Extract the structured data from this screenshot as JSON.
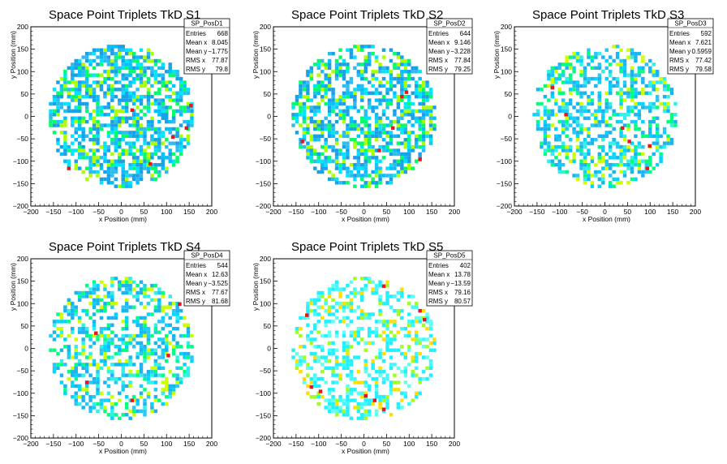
{
  "chart_data": [
    {
      "type": "heatmap",
      "title": "Space Point Triplets TkD S1",
      "xlabel": "x Position (mm)",
      "ylabel": "y Position (mm)",
      "xlim": [
        -200,
        200
      ],
      "ylim": [
        -200,
        200
      ],
      "xticks": [
        "−200",
        "−150",
        "−100",
        "−50",
        "0",
        "50",
        "100",
        "150",
        "200"
      ],
      "yticks": [
        "−200",
        "−150",
        "−100",
        "−50",
        "0",
        "50",
        "100",
        "150",
        "200"
      ],
      "stats": {
        "name": "SP_PosD1",
        "rows": [
          [
            "Entries",
            "668"
          ],
          [
            "Mean x",
            "8.045"
          ],
          [
            "Mean y",
            "−1.775"
          ],
          [
            "RMS x",
            "77.87"
          ],
          [
            "RMS y",
            "79.8"
          ]
        ]
      },
      "palette": "blue",
      "hot_cells": [
        [
          60,
          -110
        ],
        [
          150,
          20
        ],
        [
          20,
          10
        ],
        [
          -120,
          -120
        ],
        [
          110,
          -50
        ],
        [
          140,
          -30
        ]
      ]
    },
    {
      "type": "heatmap",
      "title": "Space Point Triplets TkD S2",
      "xlabel": "x Position (mm)",
      "ylabel": "y Position (mm)",
      "xlim": [
        -200,
        200
      ],
      "ylim": [
        -200,
        200
      ],
      "xticks": [
        "−200",
        "−150",
        "−100",
        "−50",
        "0",
        "50",
        "100",
        "150",
        "200"
      ],
      "yticks": [
        "−200",
        "−150",
        "−100",
        "−50",
        "0",
        "50",
        "100",
        "150",
        "200"
      ],
      "stats": {
        "name": "SP_PosD2",
        "rows": [
          [
            "Entries",
            "644"
          ],
          [
            "Mean x",
            "9.146"
          ],
          [
            "Mean y",
            "−3.228"
          ],
          [
            "RMS x",
            "77.84"
          ],
          [
            "RMS y",
            "79.25"
          ]
        ]
      },
      "palette": "blue",
      "hot_cells": [
        [
          90,
          50
        ],
        [
          60,
          -30
        ],
        [
          -140,
          -60
        ],
        [
          80,
          40
        ],
        [
          30,
          -80
        ],
        [
          120,
          -100
        ]
      ]
    },
    {
      "type": "heatmap",
      "title": "Space Point Triplets TkD S3",
      "xlabel": "x Position (mm)",
      "ylabel": "y Position (mm)",
      "xlim": [
        -200,
        200
      ],
      "ylim": [
        -200,
        200
      ],
      "xticks": [
        "−200",
        "−150",
        "−100",
        "−50",
        "0",
        "50",
        "100",
        "150",
        "200"
      ],
      "yticks": [
        "−200",
        "−150",
        "−100",
        "−50",
        "0",
        "50",
        "100",
        "150",
        "200"
      ],
      "stats": {
        "name": "SP_PosD3",
        "rows": [
          [
            "Entries",
            "592"
          ],
          [
            "Mean x",
            "7.621"
          ],
          [
            "Mean y",
            "0.5959"
          ],
          [
            "RMS x",
            "77.42"
          ],
          [
            "RMS y",
            "79.58"
          ]
        ]
      },
      "palette": "cyan",
      "hot_cells": [
        [
          35,
          -30
        ],
        [
          90,
          -120
        ],
        [
          95,
          -70
        ],
        [
          -90,
          0
        ],
        [
          50,
          -60
        ],
        [
          -120,
          60
        ]
      ]
    },
    {
      "type": "heatmap",
      "title": "Space Point Triplets TkD S4",
      "xlabel": "x Position (mm)",
      "ylabel": "y Position (mm)",
      "xlim": [
        -200,
        200
      ],
      "ylim": [
        -200,
        200
      ],
      "xticks": [
        "−200",
        "−150",
        "−100",
        "−50",
        "0",
        "50",
        "100",
        "150",
        "200"
      ],
      "yticks": [
        "−200",
        "−150",
        "−100",
        "−50",
        "0",
        "50",
        "100",
        "150",
        "200"
      ],
      "stats": {
        "name": "SP_PosD4",
        "rows": [
          [
            "Entries",
            "544"
          ],
          [
            "Mean x",
            "12.63"
          ],
          [
            "Mean y",
            "−3.525"
          ],
          [
            "RMS x",
            "77.67"
          ],
          [
            "RMS y",
            "81.68"
          ]
        ]
      },
      "palette": "cyan",
      "hot_cells": [
        [
          125,
          95
        ],
        [
          -80,
          -80
        ],
        [
          100,
          -20
        ],
        [
          -60,
          30
        ],
        [
          20,
          -120
        ]
      ]
    },
    {
      "type": "heatmap",
      "title": "Space Point Triplets TkD S5",
      "xlabel": "x Position (mm)",
      "ylabel": "y Position (mm)",
      "xlim": [
        -200,
        200
      ],
      "ylim": [
        -200,
        200
      ],
      "xticks": [
        "−200",
        "−150",
        "−100",
        "−50",
        "0",
        "50",
        "100",
        "150",
        "200"
      ],
      "yticks": [
        "−200",
        "−150",
        "−100",
        "−50",
        "0",
        "50",
        "100",
        "150",
        "200"
      ],
      "stats": {
        "name": "SP_PosD5",
        "rows": [
          [
            "Entries",
            "402"
          ],
          [
            "Mean x",
            "13.78"
          ],
          [
            "Mean y",
            "−13.59"
          ],
          [
            "RMS x",
            "79.16"
          ],
          [
            "RMS y",
            "80.57"
          ]
        ]
      },
      "palette": "lightcyan",
      "hot_cells": [
        [
          -120,
          -90
        ],
        [
          -130,
          70
        ],
        [
          -100,
          -100
        ],
        [
          20,
          -120
        ],
        [
          40,
          -140
        ],
        [
          130,
          60
        ],
        [
          120,
          80
        ],
        [
          40,
          135
        ],
        [
          0,
          -110
        ]
      ]
    }
  ]
}
